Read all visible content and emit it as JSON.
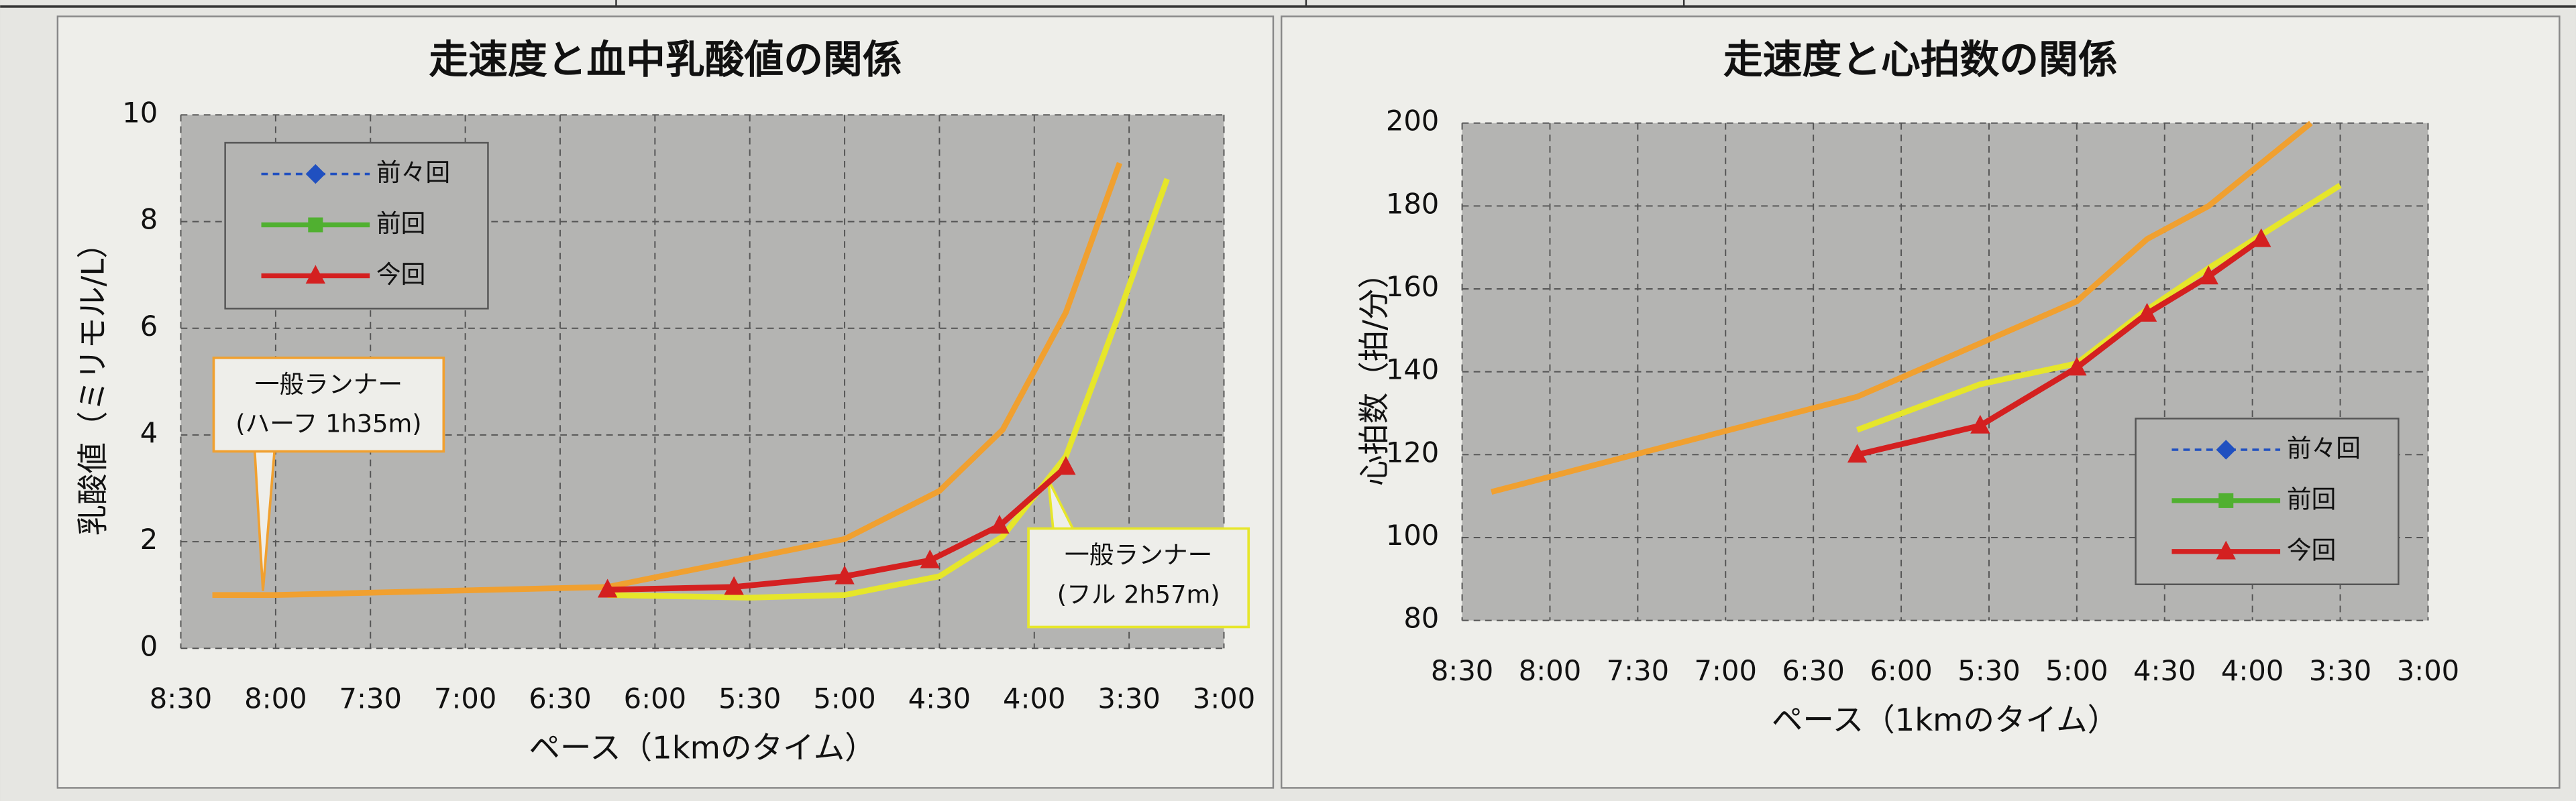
{
  "chart_data": [
    {
      "type": "line",
      "title": "走速度と血中乳酸値の関係",
      "xlabel": "ペース（1kmのタイム）",
      "ylabel": "乳酸値（ミリモル/L）",
      "xlim": [
        510,
        180
      ],
      "ylim": [
        0,
        10
      ],
      "xticks": [
        {
          "value": 510,
          "label": "8:30"
        },
        {
          "value": 480,
          "label": "8:00"
        },
        {
          "value": 450,
          "label": "7:30"
        },
        {
          "value": 420,
          "label": "7:00"
        },
        {
          "value": 390,
          "label": "6:30"
        },
        {
          "value": 360,
          "label": "6:00"
        },
        {
          "value": 330,
          "label": "5:30"
        },
        {
          "value": 300,
          "label": "5:00"
        },
        {
          "value": 270,
          "label": "4:30"
        },
        {
          "value": 240,
          "label": "4:00"
        },
        {
          "value": 210,
          "label": "3:30"
        },
        {
          "value": 180,
          "label": "3:00"
        }
      ],
      "yticks": [
        0,
        2,
        4,
        6,
        8,
        10
      ],
      "grid": true,
      "legend": "upper left",
      "series": [
        {
          "name": "前々回",
          "color": "#2050c0",
          "marker": "diamond",
          "dash": true,
          "x": [],
          "values": []
        },
        {
          "name": "前回",
          "color": "#50b030",
          "marker": "square",
          "x": [],
          "values": []
        },
        {
          "name": "今回",
          "color": "#d42020",
          "marker": "triangle",
          "x": [
            375,
            335,
            300,
            273,
            251,
            230
          ],
          "values": [
            1.1,
            1.15,
            1.35,
            1.65,
            2.3,
            3.4
          ]
        },
        {
          "color": "#f0a030",
          "x": [
            500,
            480,
            375,
            300,
            270,
            250,
            230,
            213
          ],
          "values": [
            1.0,
            1.0,
            1.15,
            2.05,
            2.95,
            4.1,
            6.3,
            9.1
          ]
        },
        {
          "color": "#e6e62a",
          "x": [
            375,
            330,
            300,
            270,
            250,
            230,
            213,
            198
          ],
          "values": [
            1.0,
            0.95,
            1.0,
            1.35,
            2.1,
            3.6,
            6.3,
            8.8
          ]
        }
      ],
      "annotations": [
        {
          "lines": [
            "一般ランナー",
            "(ハーフ 1h35m)"
          ],
          "color": "#f0a030"
        },
        {
          "lines": [
            "一般ランナー",
            "(フル 2h57m)"
          ],
          "color": "#e6e62a"
        }
      ]
    },
    {
      "type": "line",
      "title": "走速度と心拍数の関係",
      "xlabel": "ペース（1kmのタイム）",
      "ylabel": "心拍数（拍/分）",
      "xlim": [
        510,
        180
      ],
      "ylim": [
        80,
        200
      ],
      "xticks": [
        {
          "value": 510,
          "label": "8:30"
        },
        {
          "value": 480,
          "label": "8:00"
        },
        {
          "value": 450,
          "label": "7:30"
        },
        {
          "value": 420,
          "label": "7:00"
        },
        {
          "value": 390,
          "label": "6:30"
        },
        {
          "value": 360,
          "label": "6:00"
        },
        {
          "value": 330,
          "label": "5:30"
        },
        {
          "value": 300,
          "label": "5:00"
        },
        {
          "value": 270,
          "label": "4:30"
        },
        {
          "value": 240,
          "label": "4:00"
        },
        {
          "value": 210,
          "label": "3:30"
        },
        {
          "value": 180,
          "label": "3:00"
        }
      ],
      "yticks": [
        80,
        100,
        120,
        140,
        160,
        180,
        200
      ],
      "grid": true,
      "legend": "lower right",
      "series": [
        {
          "name": "前々回",
          "color": "#2050c0",
          "marker": "diamond",
          "dash": true,
          "x": [],
          "values": []
        },
        {
          "name": "前回",
          "color": "#50b030",
          "marker": "square",
          "x": [],
          "values": []
        },
        {
          "name": "今回",
          "color": "#d42020",
          "marker": "triangle",
          "x": [
            375,
            333,
            300,
            276,
            255,
            237
          ],
          "values": [
            120,
            127,
            141,
            154,
            163,
            172
          ]
        },
        {
          "color": "#f0a030",
          "x": [
            500,
            375,
            300,
            276,
            255,
            220
          ],
          "values": [
            111,
            134,
            157,
            172,
            180,
            200
          ]
        },
        {
          "color": "#e6e62a",
          "x": [
            375,
            333,
            300,
            278,
            255,
            210
          ],
          "values": [
            126,
            137,
            142,
            154,
            165,
            185
          ]
        }
      ]
    }
  ]
}
